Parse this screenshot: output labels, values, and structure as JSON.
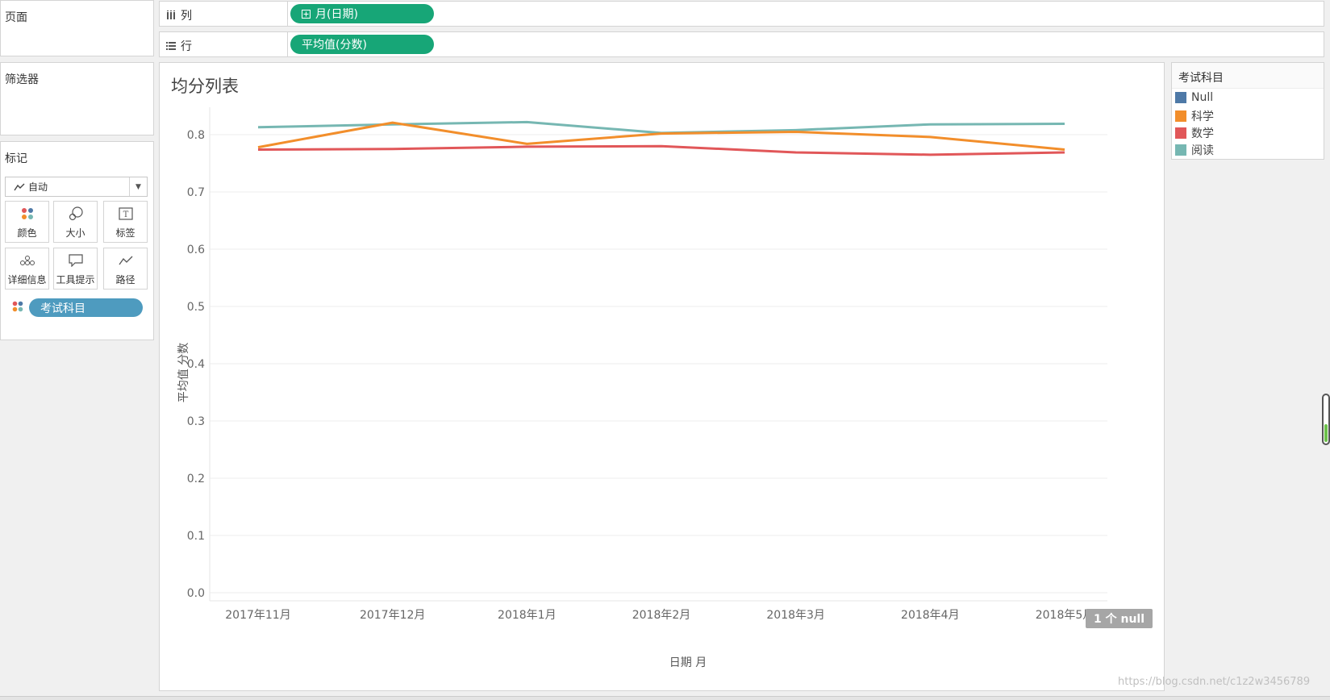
{
  "pages": {
    "title": "页面"
  },
  "filters": {
    "title": "筛选器"
  },
  "marks": {
    "title": "标记",
    "type_label": "自动",
    "buttons": [
      {
        "label": "颜色",
        "icon": "color-icon"
      },
      {
        "label": "大小",
        "icon": "size-icon"
      },
      {
        "label": "标签",
        "icon": "label-icon"
      },
      {
        "label": "详细信息",
        "icon": "detail-icon"
      },
      {
        "label": "工具提示",
        "icon": "tooltip-icon"
      },
      {
        "label": "路径",
        "icon": "path-icon"
      }
    ],
    "color_pill": "考试科目"
  },
  "shelves": {
    "columns_label": "列",
    "columns_pill": "月(日期)",
    "rows_label": "行",
    "rows_pill": "平均值(分数)"
  },
  "colors": {
    "pill_green": "#17a677",
    "pill_blue": "#4e9bbf",
    "null": "#4e79a7",
    "science": "#f28e2b",
    "math": "#e15759",
    "reading": "#76b7b2"
  },
  "legend": {
    "title": "考试科目",
    "items": [
      {
        "label": "Null",
        "color": "#4e79a7"
      },
      {
        "label": "科学",
        "color": "#f28e2b"
      },
      {
        "label": "数学",
        "color": "#e15759"
      },
      {
        "label": "阅读",
        "color": "#76b7b2"
      }
    ]
  },
  "null_badge": "1 个 null",
  "watermark": "https://blog.csdn.net/c1z2w3456789",
  "chart_data": {
    "type": "line",
    "title": "均分列表",
    "xlabel": "日期 月",
    "ylabel": "平均值 分数",
    "categories": [
      "2017年11月",
      "2017年12月",
      "2018年1月",
      "2018年2月",
      "2018年3月",
      "2018年4月",
      "2018年5月"
    ],
    "ylim": [
      0,
      0.85
    ],
    "yticks": [
      "0.0",
      "0.1",
      "0.2",
      "0.3",
      "0.4",
      "0.5",
      "0.6",
      "0.7",
      "0.8"
    ],
    "grid": true,
    "legend": "right",
    "series": [
      {
        "name": "阅读",
        "color": "#76b7b2",
        "values": [
          0.813,
          0.818,
          0.822,
          0.803,
          0.808,
          0.818,
          0.819
        ]
      },
      {
        "name": "科学",
        "color": "#f28e2b",
        "values": [
          0.778,
          0.821,
          0.784,
          0.802,
          0.805,
          0.796,
          0.774
        ]
      },
      {
        "name": "数学",
        "color": "#e15759",
        "values": [
          0.774,
          0.775,
          0.779,
          0.78,
          0.769,
          0.765,
          0.769
        ]
      }
    ]
  }
}
